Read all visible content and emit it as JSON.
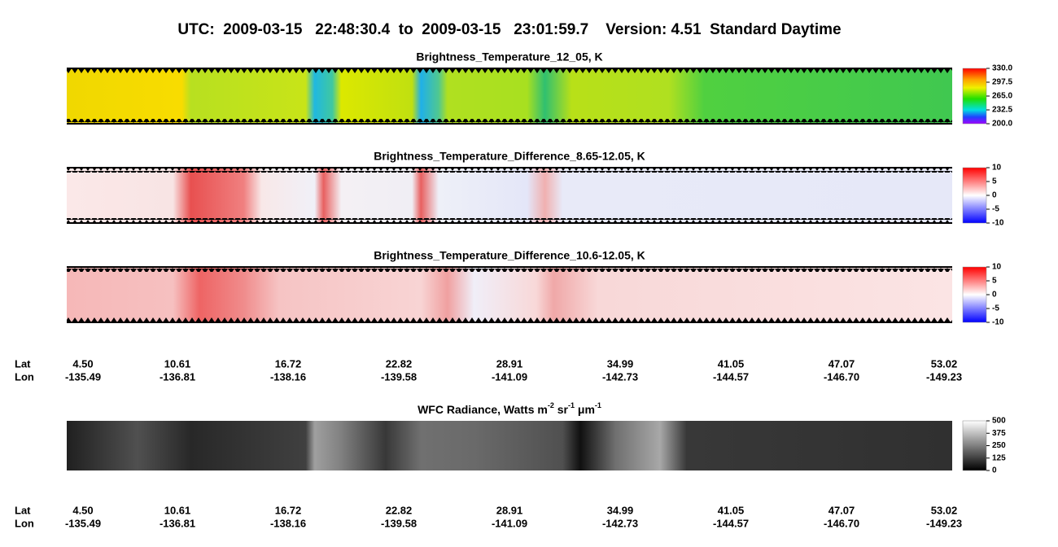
{
  "title": "UTC:  2009-03-15   22:48:30.4  to  2009-03-15   23:01:59.7    Version: 4.51  Standard Daytime",
  "panels": [
    {
      "title": "Brightness_Temperature_12_05, K",
      "colorbar_ticks": [
        "330.0",
        "297.5",
        "265.0",
        "232.5",
        "200.0"
      ]
    },
    {
      "title": "Brightness_Temperature_Difference_8.65-12.05, K",
      "colorbar_ticks": [
        "10",
        "5",
        "0",
        "-5",
        "-10"
      ]
    },
    {
      "title": "Brightness_Temperature_Difference_10.6-12.05, K",
      "colorbar_ticks": [
        "10",
        "5",
        "0",
        "-5",
        "-10"
      ]
    }
  ],
  "wfc": {
    "title_parts": [
      "WFC Radiance, Watts m",
      "-2",
      " sr",
      "-1",
      " μm",
      "-1"
    ],
    "colorbar_ticks": [
      "500",
      "375",
      "250",
      "125",
      "0"
    ]
  },
  "axes": [
    {
      "lat_label": "Lat",
      "lon_label": "Lon",
      "lat": [
        "4.50",
        "10.61",
        "16.72",
        "22.82",
        "28.91",
        "34.99",
        "41.05",
        "47.07",
        "53.02"
      ],
      "lon": [
        "-135.49",
        "-136.81",
        "-138.16",
        "-139.58",
        "-141.09",
        "-142.73",
        "-144.57",
        "-146.70",
        "-149.23"
      ]
    },
    {
      "lat_label": "Lat",
      "lon_label": "Lon",
      "lat": [
        "4.50",
        "10.61",
        "16.72",
        "22.82",
        "28.91",
        "34.99",
        "41.05",
        "47.07",
        "53.02"
      ],
      "lon": [
        "-135.49",
        "-136.81",
        "-138.16",
        "-139.58",
        "-141.09",
        "-142.73",
        "-144.57",
        "-146.70",
        "-149.23"
      ]
    }
  ]
}
